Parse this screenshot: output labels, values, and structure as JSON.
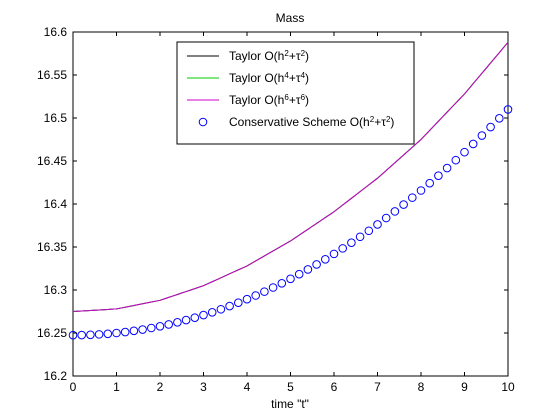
{
  "chart_data": {
    "type": "line",
    "title": "Mass",
    "xlabel": "time \"t\"",
    "ylabel": "",
    "xlim": [
      0,
      10
    ],
    "ylim": [
      16.2,
      16.6
    ],
    "xticks": [
      "0",
      "1",
      "2",
      "3",
      "4",
      "5",
      "6",
      "7",
      "8",
      "9",
      "10"
    ],
    "yticks": [
      "16.2",
      "16.25",
      "16.3",
      "16.35",
      "16.4",
      "16.45",
      "16.5",
      "16.55",
      "16.6"
    ],
    "grid": false,
    "legend_position": "top-center",
    "x": [
      0,
      1,
      2,
      3,
      4,
      5,
      6,
      7,
      8,
      9,
      10
    ],
    "series": [
      {
        "name": "Taylor O(h²+τ²)",
        "label_base": "Taylor O(h",
        "label_sup1": "2",
        "label_mid": "+τ",
        "label_sup2": "2",
        "label_end": ")",
        "style": "line",
        "color": "#000000",
        "values": [
          16.275,
          16.278,
          16.288,
          16.305,
          16.328,
          16.357,
          16.391,
          16.43,
          16.475,
          16.528,
          16.588
        ]
      },
      {
        "name": "Taylor O(h⁴+τ⁴)",
        "label_base": "Taylor O(h",
        "label_sup1": "4",
        "label_mid": "+τ",
        "label_sup2": "4",
        "label_end": ")",
        "style": "line",
        "color": "#00cc00",
        "values": [
          16.275,
          16.278,
          16.288,
          16.305,
          16.328,
          16.357,
          16.391,
          16.43,
          16.475,
          16.528,
          16.588
        ]
      },
      {
        "name": "Taylor O(h⁶+τ⁶)",
        "label_base": "Taylor O(h",
        "label_sup1": "6",
        "label_mid": "+τ",
        "label_sup2": "6",
        "label_end": ")",
        "style": "line",
        "color": "#cc00cc",
        "values": [
          16.275,
          16.278,
          16.288,
          16.305,
          16.328,
          16.357,
          16.391,
          16.43,
          16.475,
          16.528,
          16.588
        ]
      },
      {
        "name": "Conservative Scheme O(h²+τ²)",
        "label_base": "Conservative Scheme O(h",
        "label_sup1": "2",
        "label_mid": "+τ",
        "label_sup2": "2",
        "label_end": ")",
        "style": "markers",
        "color": "#0000ff",
        "x": [
          0,
          0.2,
          0.4,
          0.6,
          0.8,
          1,
          1.2,
          1.4,
          1.6,
          1.8,
          2,
          2.2,
          2.4,
          2.6,
          2.8,
          3,
          3.2,
          3.4,
          3.6,
          3.8,
          4,
          4.2,
          4.4,
          4.6,
          4.8,
          5,
          5.2,
          5.4,
          5.6,
          5.8,
          6,
          6.2,
          6.4,
          6.6,
          6.8,
          7,
          7.2,
          7.4,
          7.6,
          7.8,
          8,
          8.2,
          8.4,
          8.6,
          8.8,
          9,
          9.2,
          9.4,
          9.6,
          9.8,
          10
        ],
        "values": [
          16.2475,
          16.2476,
          16.2479,
          16.2484,
          16.2491,
          16.25,
          16.2511,
          16.2525,
          16.254,
          16.2558,
          16.2578,
          16.26,
          16.2624,
          16.265,
          16.2678,
          16.2709,
          16.2741,
          16.2776,
          16.2813,
          16.2852,
          16.2893,
          16.2936,
          16.2981,
          16.3029,
          16.3078,
          16.313,
          16.3184,
          16.3239,
          16.3297,
          16.3357,
          16.342,
          16.3484,
          16.355,
          16.3619,
          16.3689,
          16.3762,
          16.3837,
          16.3914,
          16.3993,
          16.4074,
          16.4157,
          16.4242,
          16.4329,
          16.4418,
          16.451,
          16.4603,
          16.4698,
          16.4796,
          16.4895,
          16.4996,
          16.51
        ]
      }
    ]
  }
}
